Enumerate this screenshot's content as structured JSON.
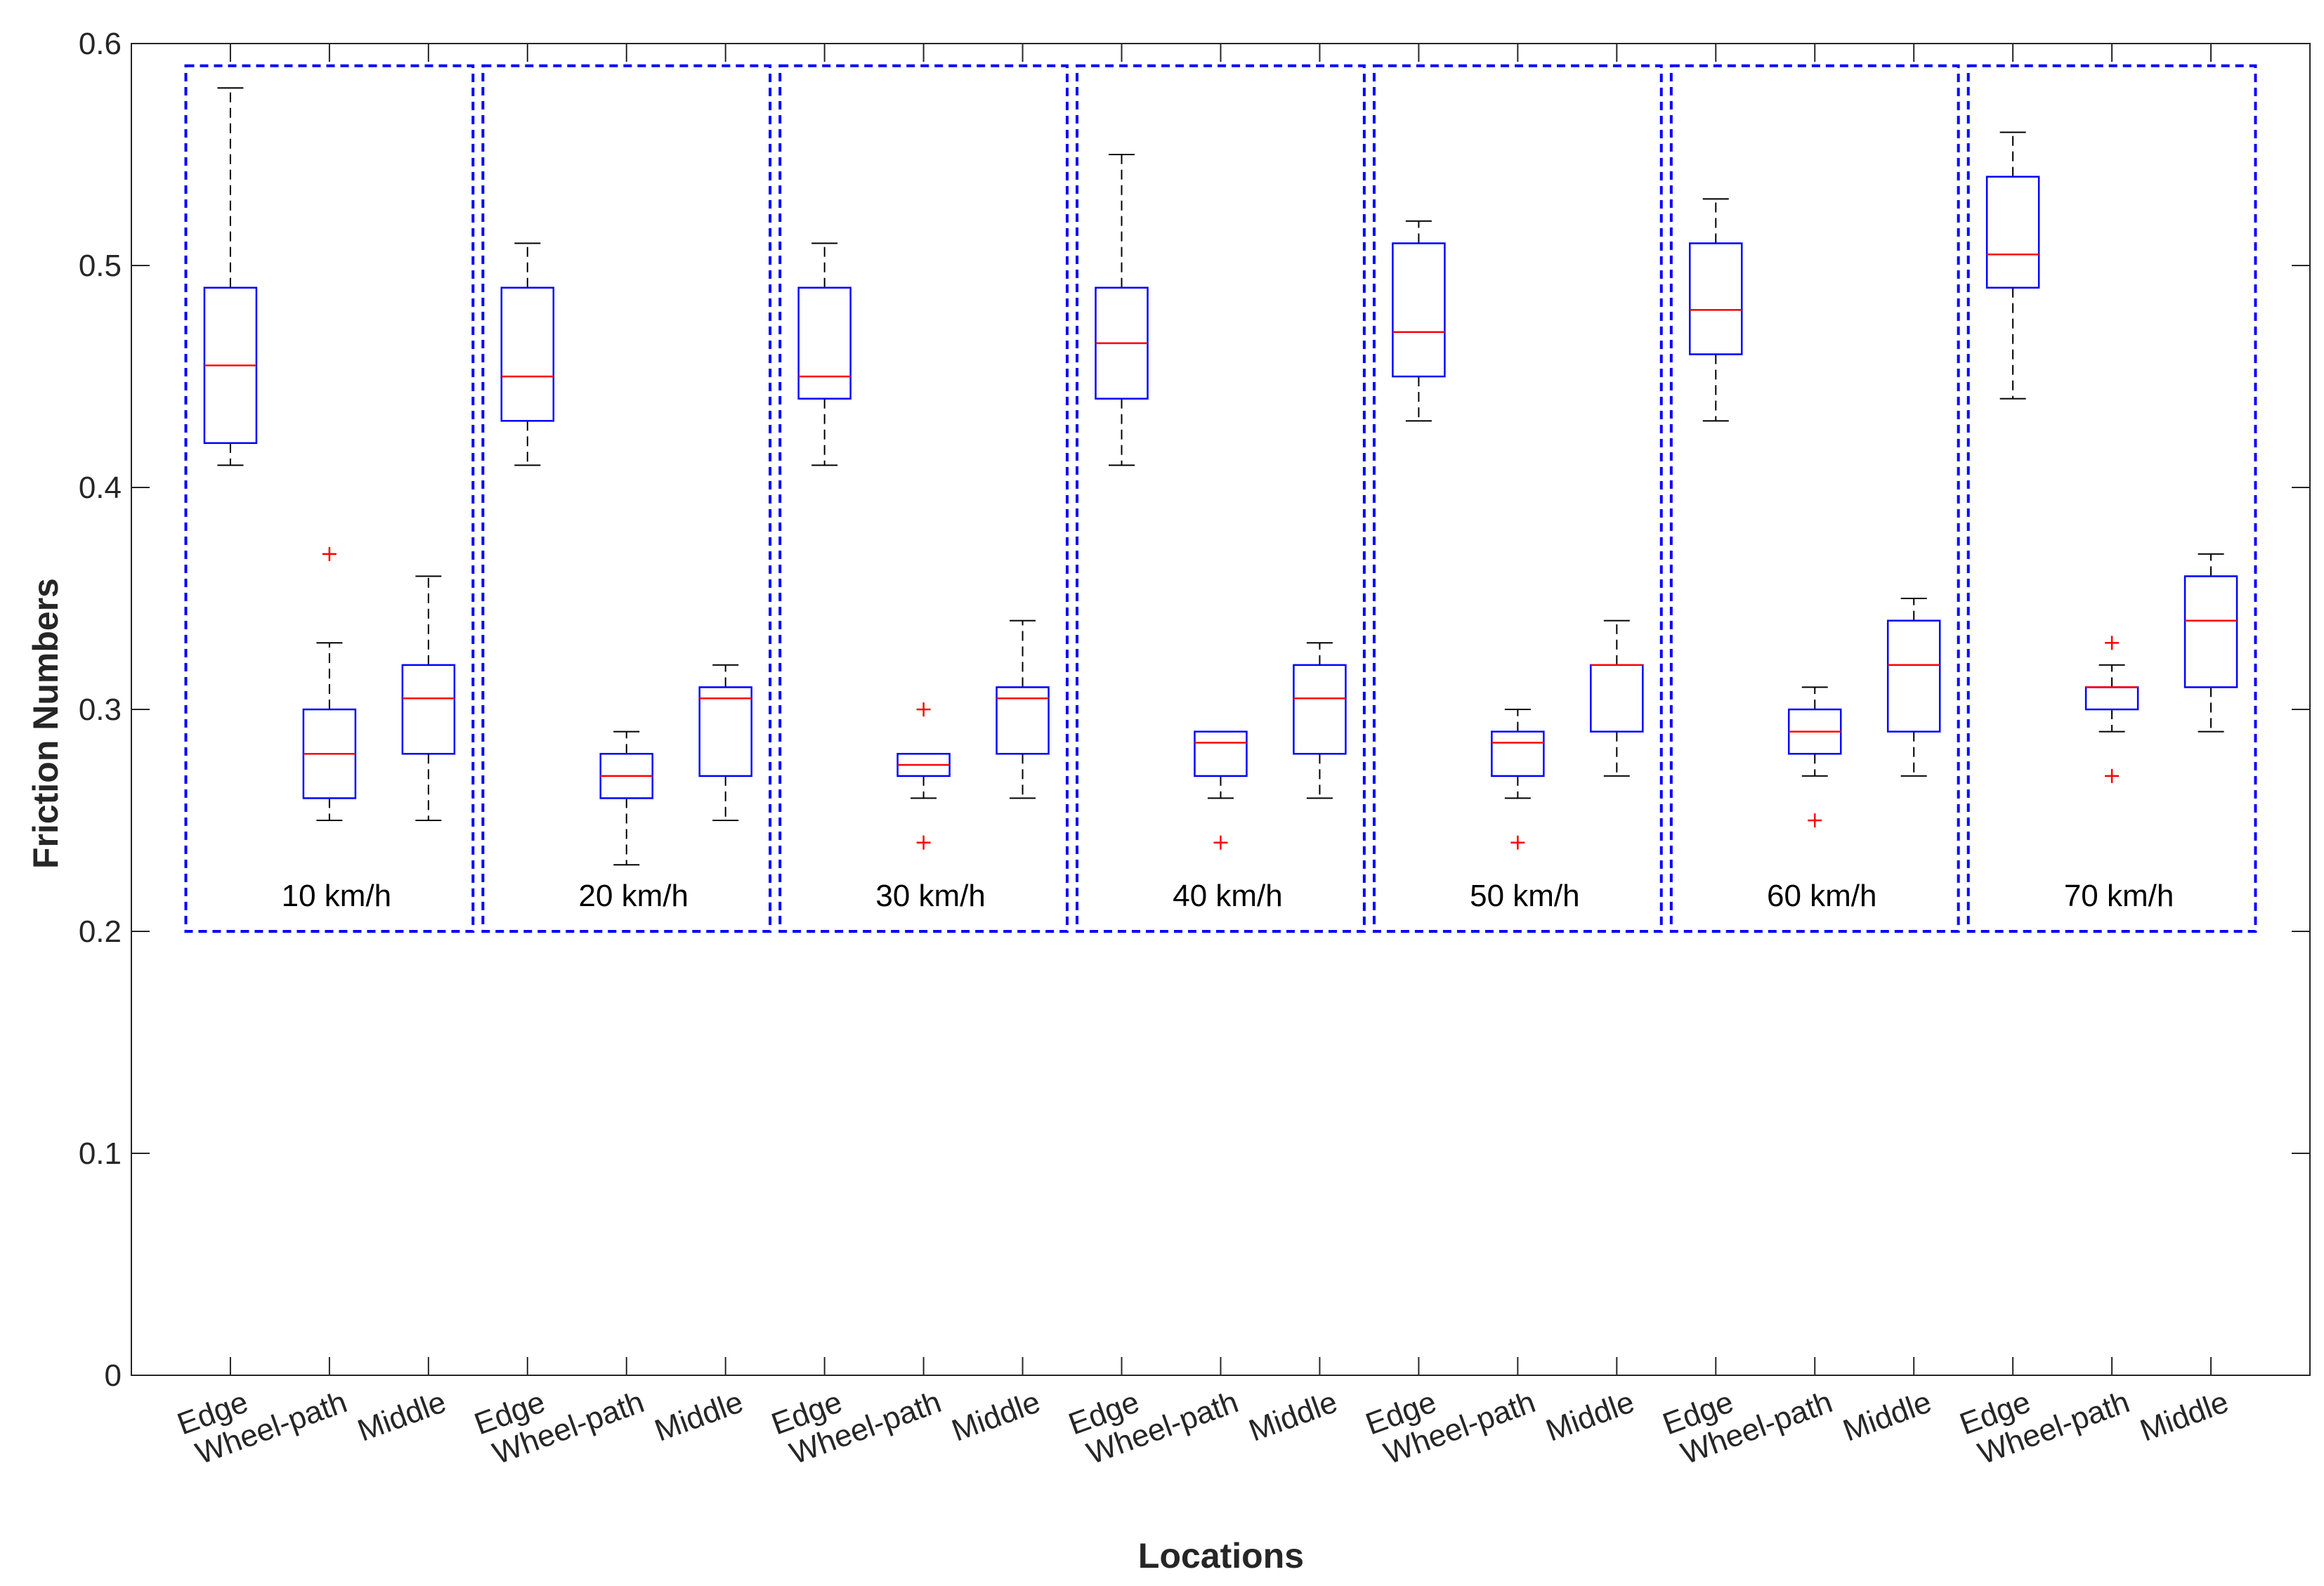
{
  "chart_data": {
    "type": "boxplot",
    "title": "",
    "xlabel": "Locations",
    "ylabel": "Friction Numbers",
    "ylim": [
      0,
      0.6
    ],
    "yticks": [
      "0",
      "0.1",
      "0.2",
      "0.3",
      "0.4",
      "0.5",
      "0.6"
    ],
    "categories": [
      "Edge",
      "Wheel-path",
      "Middle"
    ],
    "group_box_range": [
      0.2,
      0.59
    ],
    "groups": [
      {
        "label": "10 km/h",
        "boxes": [
          {
            "category": "Edge",
            "min": 0.41,
            "q1": 0.42,
            "median": 0.455,
            "q3": 0.49,
            "max": 0.58,
            "outliers": []
          },
          {
            "category": "Wheel-path",
            "min": 0.25,
            "q1": 0.26,
            "median": 0.28,
            "q3": 0.3,
            "max": 0.33,
            "outliers": [
              0.37
            ]
          },
          {
            "category": "Middle",
            "min": 0.25,
            "q1": 0.28,
            "median": 0.305,
            "q3": 0.32,
            "max": 0.36,
            "outliers": []
          }
        ]
      },
      {
        "label": "20 km/h",
        "boxes": [
          {
            "category": "Edge",
            "min": 0.41,
            "q1": 0.43,
            "median": 0.45,
            "q3": 0.49,
            "max": 0.51,
            "outliers": []
          },
          {
            "category": "Wheel-path",
            "min": 0.23,
            "q1": 0.26,
            "median": 0.27,
            "q3": 0.28,
            "max": 0.29,
            "outliers": []
          },
          {
            "category": "Middle",
            "min": 0.25,
            "q1": 0.27,
            "median": 0.305,
            "q3": 0.31,
            "max": 0.32,
            "outliers": []
          }
        ]
      },
      {
        "label": "30 km/h",
        "boxes": [
          {
            "category": "Edge",
            "min": 0.41,
            "q1": 0.44,
            "median": 0.45,
            "q3": 0.49,
            "max": 0.51,
            "outliers": []
          },
          {
            "category": "Wheel-path",
            "min": 0.26,
            "q1": 0.27,
            "median": 0.275,
            "q3": 0.28,
            "max": 0.28,
            "outliers": [
              0.3,
              0.24
            ]
          },
          {
            "category": "Middle",
            "min": 0.26,
            "q1": 0.28,
            "median": 0.305,
            "q3": 0.31,
            "max": 0.34,
            "outliers": []
          }
        ]
      },
      {
        "label": "40 km/h",
        "boxes": [
          {
            "category": "Edge",
            "min": 0.41,
            "q1": 0.44,
            "median": 0.465,
            "q3": 0.49,
            "max": 0.55,
            "outliers": []
          },
          {
            "category": "Wheel-path",
            "min": 0.26,
            "q1": 0.27,
            "median": 0.285,
            "q3": 0.29,
            "max": 0.29,
            "outliers": [
              0.24
            ]
          },
          {
            "category": "Middle",
            "min": 0.26,
            "q1": 0.28,
            "median": 0.305,
            "q3": 0.32,
            "max": 0.33,
            "outliers": []
          }
        ]
      },
      {
        "label": "50 km/h",
        "boxes": [
          {
            "category": "Edge",
            "min": 0.43,
            "q1": 0.45,
            "median": 0.47,
            "q3": 0.51,
            "max": 0.52,
            "outliers": []
          },
          {
            "category": "Wheel-path",
            "min": 0.26,
            "q1": 0.27,
            "median": 0.285,
            "q3": 0.29,
            "max": 0.3,
            "outliers": [
              0.24
            ]
          },
          {
            "category": "Middle",
            "min": 0.27,
            "q1": 0.29,
            "median": 0.32,
            "q3": 0.32,
            "max": 0.34,
            "outliers": []
          }
        ]
      },
      {
        "label": "60 km/h",
        "boxes": [
          {
            "category": "Edge",
            "min": 0.43,
            "q1": 0.46,
            "median": 0.48,
            "q3": 0.51,
            "max": 0.53,
            "outliers": []
          },
          {
            "category": "Wheel-path",
            "min": 0.27,
            "q1": 0.28,
            "median": 0.29,
            "q3": 0.3,
            "max": 0.31,
            "outliers": [
              0.25
            ]
          },
          {
            "category": "Middle",
            "min": 0.27,
            "q1": 0.29,
            "median": 0.32,
            "q3": 0.34,
            "max": 0.35,
            "outliers": []
          }
        ]
      },
      {
        "label": "70 km/h",
        "boxes": [
          {
            "category": "Edge",
            "min": 0.44,
            "q1": 0.49,
            "median": 0.505,
            "q3": 0.54,
            "max": 0.56,
            "outliers": []
          },
          {
            "category": "Wheel-path",
            "min": 0.29,
            "q1": 0.3,
            "median": 0.31,
            "q3": 0.31,
            "max": 0.32,
            "outliers": [
              0.33,
              0.27
            ]
          },
          {
            "category": "Middle",
            "min": 0.29,
            "q1": 0.31,
            "median": 0.34,
            "q3": 0.36,
            "max": 0.37,
            "outliers": []
          }
        ]
      }
    ]
  },
  "colors": {
    "box": "#0000ff",
    "median": "#ff0000",
    "whisker": "#000000",
    "outlier": "#ff0000",
    "group_frame": "#0000ff",
    "axes": "#262626"
  }
}
